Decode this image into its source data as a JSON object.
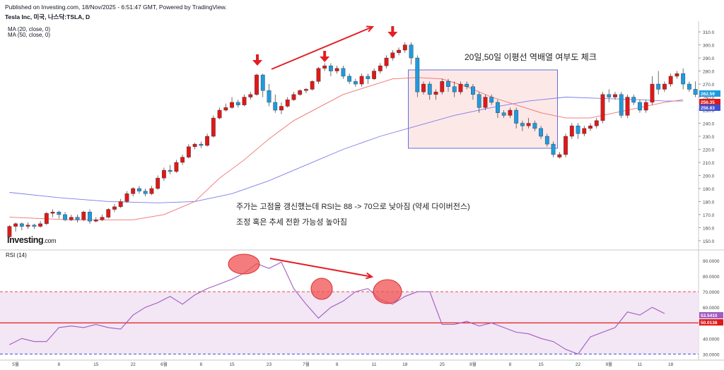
{
  "header": {
    "published": "Published on Investing.com, 18/Nov/2025 - 6:51:47 GMT, Powered by TradingView.",
    "symbol": "Tesla Inc, 미국, 나스닥:TSLA, D",
    "ma20": "MA (20, close, 0)",
    "ma50": "MA (50, close, 0)"
  },
  "annotations": {
    "box_title": "20일,50일 이평선 역배열 여부도 체크",
    "line1": "주가는 고점을 갱신했는데 RSI는 88 -> 70으로 낮아짐 (약세 다이버전스)",
    "line2": "조정 혹은 추세 전환 가능성 높아짐"
  },
  "logo": {
    "text": "Investing",
    "suffix": ".com"
  },
  "rsi_label": "RSI (14)",
  "colors": {
    "up": "#e01818",
    "down": "#1e9be0",
    "ma20": "#f07070",
    "ma50": "#7b7bef",
    "rsi": "#a05cc0",
    "arrow": "#e31e24",
    "box_fill": "#fde8e8",
    "box_stroke": "#3b4fd6"
  },
  "chart_data": [
    {
      "type": "candlestick",
      "y_ticks": [
        150,
        160,
        170,
        180,
        190,
        200,
        210,
        220,
        230,
        240,
        250,
        260,
        270,
        280,
        290,
        300,
        310
      ],
      "ylim": [
        144,
        316
      ],
      "x_ticks": [
        "5월",
        "8",
        "15",
        "22",
        "6월",
        "8",
        "15",
        "23",
        "7월",
        "8",
        "11",
        "18",
        "25",
        "8월",
        "8",
        "15",
        "22",
        "9월",
        "11",
        "18"
      ],
      "price_badges": [
        {
          "value": "262.59",
          "color": "#1e9be0"
        },
        {
          "value": "256.35",
          "color": "#e01818"
        },
        {
          "value": "256.83",
          "color": "#3b4fd6"
        }
      ],
      "candles": [
        [
          153,
          161,
          152,
          162
        ],
        [
          161,
          163,
          157,
          164
        ],
        [
          163,
          161,
          158,
          164
        ],
        [
          161,
          162,
          159,
          164
        ],
        [
          162,
          161,
          159,
          163
        ],
        [
          161,
          163,
          160,
          165
        ],
        [
          163,
          171,
          162,
          172
        ],
        [
          171,
          172,
          168,
          174
        ],
        [
          172,
          170,
          167,
          173
        ],
        [
          170,
          166,
          165,
          172
        ],
        [
          166,
          168,
          165,
          170
        ],
        [
          168,
          166,
          164,
          170
        ],
        [
          166,
          172,
          165,
          173
        ],
        [
          172,
          165,
          163,
          174
        ],
        [
          165,
          166,
          164,
          168
        ],
        [
          166,
          168,
          165,
          170
        ],
        [
          168,
          174,
          167,
          175
        ],
        [
          174,
          176,
          172,
          178
        ],
        [
          176,
          180,
          175,
          182
        ],
        [
          180,
          186,
          179,
          188
        ],
        [
          186,
          190,
          184,
          191
        ],
        [
          190,
          188,
          186,
          192
        ],
        [
          188,
          186,
          184,
          190
        ],
        [
          186,
          190,
          185,
          192
        ],
        [
          190,
          198,
          189,
          200
        ],
        [
          198,
          204,
          196,
          206
        ],
        [
          204,
          203,
          201,
          208
        ],
        [
          203,
          210,
          202,
          212
        ],
        [
          210,
          214,
          208,
          216
        ],
        [
          214,
          222,
          213,
          224
        ],
        [
          222,
          224,
          220,
          225
        ],
        [
          224,
          223,
          221,
          226
        ],
        [
          223,
          230,
          222,
          232
        ],
        [
          230,
          244,
          229,
          246
        ],
        [
          244,
          250,
          243,
          252
        ],
        [
          250,
          252,
          249,
          255
        ],
        [
          252,
          256,
          251,
          260
        ],
        [
          256,
          254,
          252,
          258
        ],
        [
          254,
          260,
          253,
          262
        ],
        [
          260,
          262,
          258,
          264
        ],
        [
          262,
          277,
          261,
          278
        ],
        [
          277,
          265,
          260,
          278
        ],
        [
          265,
          256,
          253,
          270
        ],
        [
          256,
          250,
          248,
          262
        ],
        [
          250,
          253,
          247,
          256
        ],
        [
          253,
          258,
          252,
          260
        ],
        [
          258,
          262,
          257,
          264
        ],
        [
          262,
          265,
          261,
          266
        ],
        [
          265,
          266,
          263,
          267
        ],
        [
          266,
          272,
          265,
          273
        ],
        [
          272,
          282,
          270,
          283
        ],
        [
          282,
          284,
          280,
          286
        ],
        [
          284,
          280,
          276,
          286
        ],
        [
          280,
          282,
          278,
          284
        ],
        [
          282,
          276,
          274,
          284
        ],
        [
          276,
          272,
          270,
          278
        ],
        [
          272,
          270,
          268,
          274
        ],
        [
          270,
          276,
          268,
          278
        ],
        [
          276,
          274,
          270,
          278
        ],
        [
          274,
          280,
          273,
          282
        ],
        [
          280,
          284,
          278,
          286
        ],
        [
          284,
          290,
          282,
          292
        ],
        [
          290,
          294,
          288,
          296
        ],
        [
          294,
          296,
          292,
          298
        ],
        [
          296,
          300,
          294,
          302
        ],
        [
          300,
          290,
          285,
          302
        ],
        [
          290,
          264,
          260,
          292
        ],
        [
          264,
          270,
          262,
          272
        ],
        [
          270,
          262,
          258,
          272
        ],
        [
          262,
          264,
          258,
          266
        ],
        [
          264,
          272,
          262,
          274
        ],
        [
          272,
          268,
          264,
          274
        ],
        [
          268,
          264,
          260,
          272
        ],
        [
          264,
          270,
          262,
          272
        ],
        [
          270,
          268,
          266,
          272
        ],
        [
          268,
          262,
          258,
          270
        ],
        [
          262,
          252,
          248,
          264
        ],
        [
          252,
          260,
          250,
          262
        ],
        [
          260,
          256,
          254,
          262
        ],
        [
          256,
          248,
          244,
          258
        ],
        [
          248,
          246,
          244,
          250
        ],
        [
          246,
          250,
          244,
          252
        ],
        [
          250,
          240,
          236,
          252
        ],
        [
          240,
          238,
          234,
          242
        ],
        [
          238,
          240,
          236,
          244
        ],
        [
          240,
          236,
          234,
          242
        ],
        [
          236,
          230,
          228,
          238
        ],
        [
          230,
          224,
          222,
          232
        ],
        [
          224,
          216,
          214,
          226
        ],
        [
          214,
          216,
          213,
          218
        ],
        [
          216,
          230,
          214,
          232
        ],
        [
          230,
          238,
          228,
          240
        ],
        [
          238,
          232,
          228,
          240
        ],
        [
          232,
          236,
          230,
          238
        ],
        [
          236,
          238,
          234,
          240
        ],
        [
          238,
          242,
          236,
          244
        ],
        [
          242,
          262,
          240,
          264
        ],
        [
          262,
          260,
          256,
          266
        ],
        [
          260,
          262,
          258,
          264
        ],
        [
          262,
          246,
          244,
          264
        ],
        [
          246,
          260,
          244,
          262
        ],
        [
          260,
          256,
          254,
          262
        ],
        [
          256,
          250,
          248,
          258
        ],
        [
          250,
          256,
          248,
          258
        ],
        [
          256,
          270,
          254,
          276
        ],
        [
          270,
          266,
          262,
          280
        ],
        [
          266,
          270,
          264,
          272
        ],
        [
          270,
          276,
          268,
          278
        ],
        [
          276,
          278,
          274,
          280
        ],
        [
          278,
          270,
          266,
          282
        ],
        [
          270,
          266,
          264,
          272
        ],
        [
          266,
          262,
          260,
          272
        ]
      ],
      "ma20": [
        [
          0,
          168
        ],
        [
          10,
          166
        ],
        [
          20,
          166
        ],
        [
          25,
          170
        ],
        [
          30,
          180
        ],
        [
          34,
          198
        ],
        [
          38,
          212
        ],
        [
          42,
          228
        ],
        [
          46,
          242
        ],
        [
          50,
          252
        ],
        [
          54,
          262
        ],
        [
          58,
          268
        ],
        [
          62,
          274
        ],
        [
          66,
          275
        ],
        [
          70,
          274
        ],
        [
          74,
          268
        ],
        [
          78,
          260
        ],
        [
          82,
          254
        ],
        [
          86,
          248
        ],
        [
          90,
          244
        ],
        [
          94,
          244
        ],
        [
          98,
          248
        ],
        [
          102,
          252
        ],
        [
          106,
          256
        ],
        [
          109,
          258
        ]
      ],
      "ma50": [
        [
          0,
          187
        ],
        [
          8,
          183
        ],
        [
          16,
          180
        ],
        [
          24,
          179
        ],
        [
          30,
          180
        ],
        [
          36,
          186
        ],
        [
          42,
          196
        ],
        [
          48,
          208
        ],
        [
          54,
          220
        ],
        [
          60,
          230
        ],
        [
          66,
          238
        ],
        [
          72,
          246
        ],
        [
          78,
          252
        ],
        [
          84,
          257
        ],
        [
          90,
          260
        ],
        [
          96,
          259
        ],
        [
          102,
          258
        ],
        [
          106,
          257
        ],
        [
          109,
          257
        ]
      ],
      "ylabel": ""
    },
    {
      "type": "line",
      "name": "RSI (14)",
      "y_ticks": [
        30,
        40,
        50,
        60,
        70,
        80,
        90
      ],
      "ylim": [
        27,
        95
      ],
      "levels": [
        30,
        50,
        70
      ],
      "badges": [
        {
          "value": "53.5410",
          "color": "#a05cc0"
        },
        {
          "value": "50.0138",
          "color": "#e01818"
        }
      ],
      "values": [
        [
          0,
          36
        ],
        [
          2,
          40
        ],
        [
          4,
          38
        ],
        [
          6,
          38
        ],
        [
          8,
          47
        ],
        [
          10,
          48
        ],
        [
          12,
          47
        ],
        [
          14,
          49
        ],
        [
          16,
          47
        ],
        [
          18,
          46
        ],
        [
          20,
          55
        ],
        [
          22,
          60
        ],
        [
          24,
          63
        ],
        [
          26,
          67
        ],
        [
          28,
          62
        ],
        [
          30,
          68
        ],
        [
          32,
          72
        ],
        [
          34,
          75
        ],
        [
          36,
          78
        ],
        [
          38,
          82
        ],
        [
          40,
          88
        ],
        [
          42,
          85
        ],
        [
          44,
          89
        ],
        [
          46,
          72
        ],
        [
          48,
          62
        ],
        [
          50,
          53
        ],
        [
          52,
          60
        ],
        [
          54,
          64
        ],
        [
          56,
          70
        ],
        [
          58,
          72
        ],
        [
          60,
          65
        ],
        [
          62,
          62
        ],
        [
          64,
          67
        ],
        [
          66,
          70
        ],
        [
          68,
          70
        ],
        [
          70,
          49
        ],
        [
          72,
          49
        ],
        [
          74,
          51
        ],
        [
          76,
          48
        ],
        [
          78,
          50
        ],
        [
          80,
          47
        ],
        [
          82,
          44
        ],
        [
          84,
          43
        ],
        [
          86,
          40
        ],
        [
          88,
          38
        ],
        [
          90,
          33
        ],
        [
          92,
          30
        ],
        [
          94,
          41
        ],
        [
          96,
          44
        ],
        [
          98,
          47
        ],
        [
          100,
          57
        ],
        [
          102,
          55
        ],
        [
          104,
          60
        ],
        [
          106,
          56
        ]
      ]
    }
  ]
}
